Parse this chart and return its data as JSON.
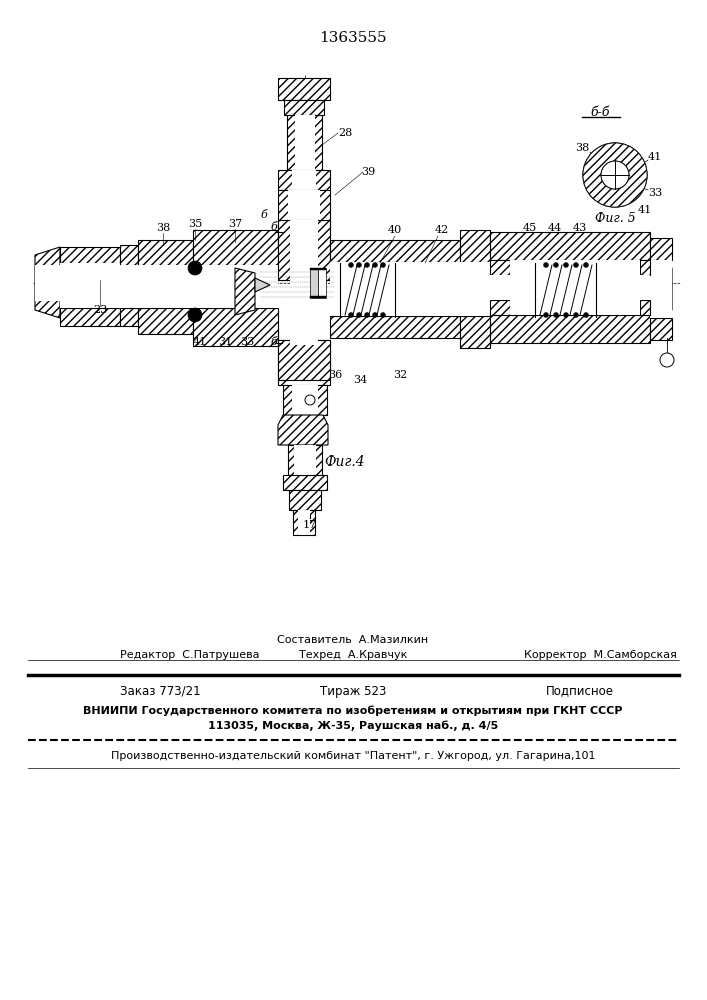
{
  "patent_number": "1363555",
  "fig4_label": "Фиг.4",
  "fig5_label": "Фиг. 5",
  "bb_label": "б-б",
  "background_color": "#ffffff",
  "line_color": "#000000",
  "text_color": "#000000",
  "editor_line": "Редактор  С.Патрушева",
  "composer_line": "Составитель  А.Мазилкин",
  "techred_line": "Техред  А.Кравчук",
  "corrector_line": "Корректор  М.Самборская",
  "order_line": "Заказ 773/21",
  "tirazh_line": "Тираж 523",
  "podpisnoe_line": "Подписное",
  "vniipI_line1": "ВНИИПИ Государственного комитета по изобретениям и открытиям при ГКНТ СССР",
  "vniipI_line2": "113035, Москва, Ж-35, Раушская наб., д. 4/5",
  "patent_line": "Производственно-издательский комбинат \"Патент\", г. Ужгород, ул. Гагарина,101"
}
